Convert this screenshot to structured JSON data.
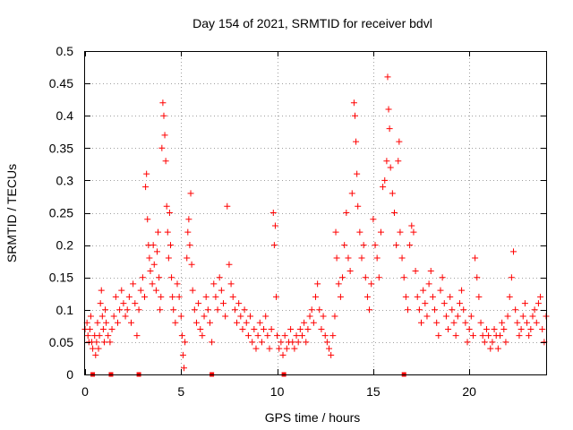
{
  "chart_data": {
    "type": "scatter",
    "title": "Day 154 of 2021, SRMTID for receiver bdvl",
    "xlabel": "GPS time / hours",
    "ylabel": "SRMTID / TECUs",
    "xlim": [
      0,
      24
    ],
    "ylim": [
      0,
      0.5
    ],
    "x_ticks": [
      0,
      5,
      10,
      15,
      20
    ],
    "x_tick_labels": [
      "0",
      "5",
      "10",
      "15",
      "20"
    ],
    "y_ticks": [
      0,
      0.05,
      0.1,
      0.15,
      0.2,
      0.25,
      0.3,
      0.35,
      0.4,
      0.45,
      0.5
    ],
    "y_tick_labels": [
      "0",
      "0.05",
      "0.1",
      "0.15",
      "0.2",
      "0.25",
      "0.3",
      "0.35",
      "0.4",
      "0.45",
      "0.5"
    ],
    "grid": true,
    "marker": "plus",
    "color": "#ff0000",
    "baseline_markers_x": [
      0.4,
      1.35,
      2.8,
      6.6,
      10.35,
      16.6
    ],
    "series": [
      {
        "name": "SRMTID",
        "points": [
          [
            0.0,
            0.07
          ],
          [
            0.1,
            0.08
          ],
          [
            0.15,
            0.06
          ],
          [
            0.2,
            0.05
          ],
          [
            0.25,
            0.07
          ],
          [
            0.3,
            0.09
          ],
          [
            0.35,
            0.05
          ],
          [
            0.4,
            0.04
          ],
          [
            0.5,
            0.06
          ],
          [
            0.55,
            0.03
          ],
          [
            0.6,
            0.05
          ],
          [
            0.65,
            0.08
          ],
          [
            0.7,
            0.04
          ],
          [
            0.75,
            0.06
          ],
          [
            0.8,
            0.11
          ],
          [
            0.85,
            0.13
          ],
          [
            0.9,
            0.09
          ],
          [
            0.95,
            0.07
          ],
          [
            1.0,
            0.05
          ],
          [
            1.05,
            0.1
          ],
          [
            1.1,
            0.08
          ],
          [
            1.2,
            0.06
          ],
          [
            1.3,
            0.05
          ],
          [
            1.4,
            0.07
          ],
          [
            1.5,
            0.09
          ],
          [
            1.6,
            0.12
          ],
          [
            1.7,
            0.08
          ],
          [
            1.8,
            0.1
          ],
          [
            1.9,
            0.13
          ],
          [
            2.0,
            0.11
          ],
          [
            2.1,
            0.09
          ],
          [
            2.2,
            0.1
          ],
          [
            2.3,
            0.12
          ],
          [
            2.4,
            0.08
          ],
          [
            2.5,
            0.14
          ],
          [
            2.6,
            0.11
          ],
          [
            2.7,
            0.06
          ],
          [
            2.8,
            0.1
          ],
          [
            2.9,
            0.13
          ],
          [
            3.0,
            0.15
          ],
          [
            3.1,
            0.12
          ],
          [
            3.15,
            0.29
          ],
          [
            3.2,
            0.31
          ],
          [
            3.25,
            0.24
          ],
          [
            3.3,
            0.2
          ],
          [
            3.35,
            0.18
          ],
          [
            3.4,
            0.16
          ],
          [
            3.5,
            0.14
          ],
          [
            3.55,
            0.2
          ],
          [
            3.6,
            0.17
          ],
          [
            3.7,
            0.13
          ],
          [
            3.75,
            0.19
          ],
          [
            3.8,
            0.22
          ],
          [
            3.85,
            0.15
          ],
          [
            3.9,
            0.1
          ],
          [
            3.95,
            0.12
          ],
          [
            4.0,
            0.35
          ],
          [
            4.05,
            0.42
          ],
          [
            4.1,
            0.4
          ],
          [
            4.15,
            0.37
          ],
          [
            4.2,
            0.33
          ],
          [
            4.25,
            0.26
          ],
          [
            4.3,
            0.22
          ],
          [
            4.35,
            0.18
          ],
          [
            4.4,
            0.25
          ],
          [
            4.45,
            0.2
          ],
          [
            4.5,
            0.15
          ],
          [
            4.55,
            0.12
          ],
          [
            4.6,
            0.1
          ],
          [
            4.7,
            0.08
          ],
          [
            4.8,
            0.14
          ],
          [
            4.9,
            0.12
          ],
          [
            5.0,
            0.09
          ],
          [
            5.05,
            0.06
          ],
          [
            5.1,
            0.03
          ],
          [
            5.15,
            0.01
          ],
          [
            5.2,
            0.05
          ],
          [
            5.3,
            0.18
          ],
          [
            5.35,
            0.22
          ],
          [
            5.4,
            0.24
          ],
          [
            5.45,
            0.2
          ],
          [
            5.5,
            0.28
          ],
          [
            5.55,
            0.17
          ],
          [
            5.6,
            0.13
          ],
          [
            5.7,
            0.1
          ],
          [
            5.8,
            0.08
          ],
          [
            5.9,
            0.11
          ],
          [
            6.0,
            0.07
          ],
          [
            6.1,
            0.06
          ],
          [
            6.2,
            0.09
          ],
          [
            6.3,
            0.12
          ],
          [
            6.4,
            0.1
          ],
          [
            6.5,
            0.08
          ],
          [
            6.6,
            0.05
          ],
          [
            6.7,
            0.14
          ],
          [
            6.8,
            0.12
          ],
          [
            6.9,
            0.1
          ],
          [
            7.0,
            0.15
          ],
          [
            7.1,
            0.13
          ],
          [
            7.2,
            0.11
          ],
          [
            7.3,
            0.09
          ],
          [
            7.4,
            0.26
          ],
          [
            7.5,
            0.17
          ],
          [
            7.6,
            0.14
          ],
          [
            7.7,
            0.12
          ],
          [
            7.8,
            0.1
          ],
          [
            7.9,
            0.08
          ],
          [
            8.0,
            0.11
          ],
          [
            8.1,
            0.09
          ],
          [
            8.2,
            0.07
          ],
          [
            8.3,
            0.1
          ],
          [
            8.4,
            0.08
          ],
          [
            8.5,
            0.06
          ],
          [
            8.6,
            0.09
          ],
          [
            8.7,
            0.05
          ],
          [
            8.8,
            0.07
          ],
          [
            8.9,
            0.04
          ],
          [
            9.0,
            0.06
          ],
          [
            9.1,
            0.08
          ],
          [
            9.2,
            0.05
          ],
          [
            9.3,
            0.07
          ],
          [
            9.4,
            0.09
          ],
          [
            9.5,
            0.06
          ],
          [
            9.6,
            0.04
          ],
          [
            9.7,
            0.07
          ],
          [
            9.8,
            0.25
          ],
          [
            9.85,
            0.2
          ],
          [
            9.9,
            0.23
          ],
          [
            9.95,
            0.12
          ],
          [
            10.0,
            0.06
          ],
          [
            10.1,
            0.04
          ],
          [
            10.2,
            0.05
          ],
          [
            10.3,
            0.03
          ],
          [
            10.4,
            0.06
          ],
          [
            10.5,
            0.04
          ],
          [
            10.6,
            0.05
          ],
          [
            10.7,
            0.07
          ],
          [
            10.8,
            0.05
          ],
          [
            10.9,
            0.04
          ],
          [
            11.0,
            0.06
          ],
          [
            11.1,
            0.05
          ],
          [
            11.2,
            0.07
          ],
          [
            11.3,
            0.06
          ],
          [
            11.4,
            0.08
          ],
          [
            11.5,
            0.05
          ],
          [
            11.6,
            0.07
          ],
          [
            11.7,
            0.09
          ],
          [
            11.8,
            0.1
          ],
          [
            11.9,
            0.08
          ],
          [
            12.0,
            0.12
          ],
          [
            12.1,
            0.14
          ],
          [
            12.2,
            0.1
          ],
          [
            12.3,
            0.07
          ],
          [
            12.4,
            0.09
          ],
          [
            12.5,
            0.06
          ],
          [
            12.6,
            0.05
          ],
          [
            12.7,
            0.04
          ],
          [
            12.8,
            0.03
          ],
          [
            12.9,
            0.06
          ],
          [
            13.0,
            0.09
          ],
          [
            13.05,
            0.22
          ],
          [
            13.1,
            0.18
          ],
          [
            13.2,
            0.14
          ],
          [
            13.3,
            0.12
          ],
          [
            13.4,
            0.15
          ],
          [
            13.5,
            0.2
          ],
          [
            13.6,
            0.25
          ],
          [
            13.7,
            0.18
          ],
          [
            13.8,
            0.16
          ],
          [
            13.9,
            0.28
          ],
          [
            14.0,
            0.42
          ],
          [
            14.05,
            0.4
          ],
          [
            14.1,
            0.36
          ],
          [
            14.15,
            0.31
          ],
          [
            14.2,
            0.26
          ],
          [
            14.3,
            0.22
          ],
          [
            14.4,
            0.18
          ],
          [
            14.5,
            0.2
          ],
          [
            14.6,
            0.15
          ],
          [
            14.7,
            0.12
          ],
          [
            14.8,
            0.1
          ],
          [
            14.9,
            0.14
          ],
          [
            15.0,
            0.24
          ],
          [
            15.1,
            0.2
          ],
          [
            15.2,
            0.18
          ],
          [
            15.3,
            0.15
          ],
          [
            15.4,
            0.22
          ],
          [
            15.5,
            0.29
          ],
          [
            15.6,
            0.3
          ],
          [
            15.7,
            0.33
          ],
          [
            15.75,
            0.46
          ],
          [
            15.8,
            0.41
          ],
          [
            15.85,
            0.38
          ],
          [
            15.9,
            0.32
          ],
          [
            16.0,
            0.28
          ],
          [
            16.1,
            0.25
          ],
          [
            16.2,
            0.2
          ],
          [
            16.3,
            0.33
          ],
          [
            16.35,
            0.36
          ],
          [
            16.4,
            0.22
          ],
          [
            16.5,
            0.18
          ],
          [
            16.6,
            0.15
          ],
          [
            16.7,
            0.12
          ],
          [
            16.8,
            0.1
          ],
          [
            16.9,
            0.2
          ],
          [
            17.0,
            0.23
          ],
          [
            17.1,
            0.22
          ],
          [
            17.2,
            0.16
          ],
          [
            17.3,
            0.12
          ],
          [
            17.4,
            0.1
          ],
          [
            17.5,
            0.08
          ],
          [
            17.6,
            0.13
          ],
          [
            17.7,
            0.11
          ],
          [
            17.8,
            0.09
          ],
          [
            17.9,
            0.14
          ],
          [
            18.0,
            0.16
          ],
          [
            18.1,
            0.12
          ],
          [
            18.2,
            0.1
          ],
          [
            18.3,
            0.08
          ],
          [
            18.4,
            0.06
          ],
          [
            18.5,
            0.13
          ],
          [
            18.6,
            0.15
          ],
          [
            18.7,
            0.11
          ],
          [
            18.8,
            0.09
          ],
          [
            18.9,
            0.07
          ],
          [
            19.0,
            0.12
          ],
          [
            19.1,
            0.1
          ],
          [
            19.2,
            0.08
          ],
          [
            19.3,
            0.06
          ],
          [
            19.4,
            0.09
          ],
          [
            19.5,
            0.11
          ],
          [
            19.6,
            0.13
          ],
          [
            19.7,
            0.1
          ],
          [
            19.8,
            0.08
          ],
          [
            19.9,
            0.05
          ],
          [
            20.0,
            0.07
          ],
          [
            20.1,
            0.09
          ],
          [
            20.2,
            0.06
          ],
          [
            20.3,
            0.18
          ],
          [
            20.4,
            0.15
          ],
          [
            20.5,
            0.12
          ],
          [
            20.6,
            0.08
          ],
          [
            20.7,
            0.06
          ],
          [
            20.8,
            0.05
          ],
          [
            20.9,
            0.07
          ],
          [
            21.0,
            0.06
          ],
          [
            21.1,
            0.04
          ],
          [
            21.2,
            0.05
          ],
          [
            21.3,
            0.07
          ],
          [
            21.4,
            0.06
          ],
          [
            21.5,
            0.04
          ],
          [
            21.6,
            0.06
          ],
          [
            21.7,
            0.08
          ],
          [
            21.8,
            0.07
          ],
          [
            21.9,
            0.05
          ],
          [
            22.0,
            0.09
          ],
          [
            22.1,
            0.12
          ],
          [
            22.2,
            0.15
          ],
          [
            22.3,
            0.19
          ],
          [
            22.4,
            0.1
          ],
          [
            22.5,
            0.08
          ],
          [
            22.6,
            0.06
          ],
          [
            22.7,
            0.07
          ],
          [
            22.8,
            0.09
          ],
          [
            22.9,
            0.11
          ],
          [
            23.0,
            0.08
          ],
          [
            23.1,
            0.06
          ],
          [
            23.2,
            0.07
          ],
          [
            23.3,
            0.09
          ],
          [
            23.4,
            0.1
          ],
          [
            23.5,
            0.08
          ],
          [
            23.6,
            0.11
          ],
          [
            23.7,
            0.12
          ],
          [
            23.8,
            0.07
          ],
          [
            23.9,
            0.05
          ],
          [
            24.0,
            0.09
          ]
        ]
      }
    ]
  }
}
